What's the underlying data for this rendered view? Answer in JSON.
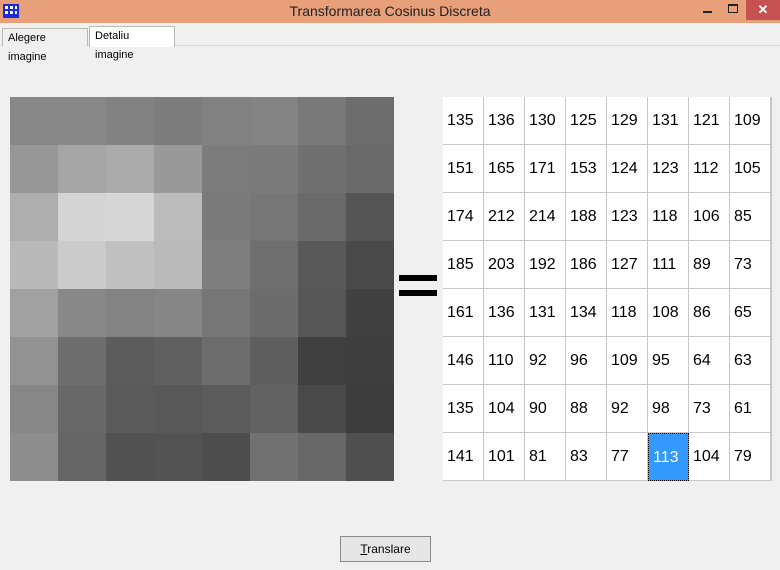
{
  "window": {
    "title": "Transformarea Cosinus Discreta",
    "close_glyph": "✕"
  },
  "tabs": [
    {
      "label": "Alegere imagine",
      "active": false
    },
    {
      "label": "Detaliu imagine",
      "active": true
    }
  ],
  "icons": {
    "app": "dct-grid-app-icon",
    "minimize": "minimize-icon",
    "maximize": "maximize-icon",
    "close": "close-icon"
  },
  "image_block": [
    [
      135,
      136,
      130,
      125,
      129,
      131,
      121,
      109
    ],
    [
      151,
      165,
      171,
      153,
      124,
      123,
      112,
      105
    ],
    [
      174,
      212,
      214,
      188,
      123,
      118,
      106,
      85
    ],
    [
      185,
      203,
      192,
      186,
      127,
      111,
      89,
      73
    ],
    [
      161,
      136,
      131,
      134,
      118,
      108,
      86,
      65
    ],
    [
      146,
      110,
      92,
      96,
      109,
      95,
      64,
      63
    ],
    [
      135,
      104,
      90,
      88,
      92,
      98,
      73,
      61
    ],
    [
      141,
      101,
      81,
      83,
      77,
      113,
      104,
      79
    ]
  ],
  "matrix": {
    "values": [
      [
        135,
        136,
        130,
        125,
        129,
        131,
        121,
        109
      ],
      [
        151,
        165,
        171,
        153,
        124,
        123,
        112,
        105
      ],
      [
        174,
        212,
        214,
        188,
        123,
        118,
        106,
        85
      ],
      [
        185,
        203,
        192,
        186,
        127,
        111,
        89,
        73
      ],
      [
        161,
        136,
        131,
        134,
        118,
        108,
        86,
        65
      ],
      [
        146,
        110,
        92,
        96,
        109,
        95,
        64,
        63
      ],
      [
        135,
        104,
        90,
        88,
        92,
        98,
        73,
        61
      ],
      [
        141,
        101,
        81,
        83,
        77,
        113,
        104,
        79
      ]
    ],
    "selected": {
      "row": 7,
      "col": 5
    },
    "selected_color": "#3399ff"
  },
  "buttons": {
    "translare_mnemonic": "T",
    "translare_rest": "ranslare"
  },
  "colors": {
    "titlebar": "#e8a07a",
    "close_button": "#c75050"
  }
}
